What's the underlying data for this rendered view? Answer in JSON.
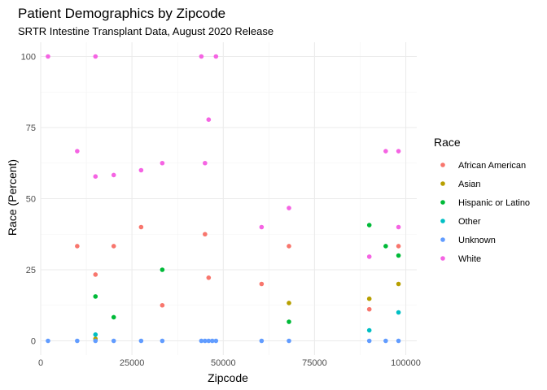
{
  "chart_data": {
    "type": "scatter",
    "title": "Patient Demographics by Zipcode",
    "subtitle": "SRTR Intestine Transplant Data, August 2020 Release",
    "xlabel": "Zipcode",
    "ylabel": "Race (Percent)",
    "xlim": [
      0,
      103000
    ],
    "ylim": [
      -5,
      105
    ],
    "x_ticks": [
      0,
      25000,
      50000,
      75000,
      100000
    ],
    "x_tick_labels": [
      "0",
      "25000",
      "50000",
      "75000",
      "100000"
    ],
    "y_ticks": [
      0,
      25,
      50,
      75,
      100
    ],
    "y_tick_labels": [
      "0",
      "25",
      "50",
      "75",
      "100"
    ],
    "grid": true,
    "legend": {
      "title": "Race",
      "position": "right"
    },
    "series": [
      {
        "name": "African American",
        "color": "#F8766D",
        "points": [
          [
            10000,
            33.3
          ],
          [
            15000,
            23.3
          ],
          [
            20000,
            33.3
          ],
          [
            27500,
            40
          ],
          [
            33300,
            12.5
          ],
          [
            45000,
            37.5
          ],
          [
            46000,
            22.2
          ],
          [
            60500,
            20
          ],
          [
            68000,
            33.3
          ],
          [
            90000,
            11.1
          ],
          [
            98000,
            33.3
          ]
        ]
      },
      {
        "name": "Asian",
        "color": "#B79F00",
        "points": [
          [
            15000,
            0.7
          ],
          [
            68000,
            13.3
          ],
          [
            90000,
            14.8
          ],
          [
            98000,
            20
          ]
        ]
      },
      {
        "name": "Hispanic or Latino",
        "color": "#00BA38",
        "points": [
          [
            15000,
            15.6
          ],
          [
            20000,
            8.3
          ],
          [
            33300,
            25
          ],
          [
            68000,
            6.7
          ],
          [
            90000,
            40.7
          ],
          [
            94500,
            33.3
          ],
          [
            98000,
            30
          ]
        ]
      },
      {
        "name": "Other",
        "color": "#00BFC4",
        "points": [
          [
            15000,
            2.2
          ],
          [
            90000,
            3.7
          ],
          [
            98000,
            10
          ]
        ]
      },
      {
        "name": "Unknown",
        "color": "#619CFF",
        "points": [
          [
            2000,
            0
          ],
          [
            10000,
            0
          ],
          [
            15000,
            0
          ],
          [
            20000,
            0
          ],
          [
            27500,
            0
          ],
          [
            33300,
            0
          ],
          [
            44000,
            0
          ],
          [
            45000,
            0
          ],
          [
            46000,
            0
          ],
          [
            47000,
            0
          ],
          [
            48000,
            0
          ],
          [
            60500,
            0
          ],
          [
            68000,
            0
          ],
          [
            90000,
            0
          ],
          [
            94500,
            0
          ],
          [
            98000,
            0
          ]
        ]
      },
      {
        "name": "White",
        "color": "#F564E3",
        "points": [
          [
            2000,
            100
          ],
          [
            10000,
            66.7
          ],
          [
            15000,
            100
          ],
          [
            15000,
            57.8
          ],
          [
            20000,
            58.3
          ],
          [
            27500,
            60
          ],
          [
            33300,
            62.5
          ],
          [
            44000,
            100
          ],
          [
            45000,
            62.5
          ],
          [
            46000,
            77.8
          ],
          [
            48000,
            100
          ],
          [
            60500,
            40
          ],
          [
            68000,
            46.7
          ],
          [
            90000,
            29.6
          ],
          [
            94500,
            66.7
          ],
          [
            98000,
            66.7
          ],
          [
            98000,
            40
          ]
        ]
      }
    ]
  }
}
